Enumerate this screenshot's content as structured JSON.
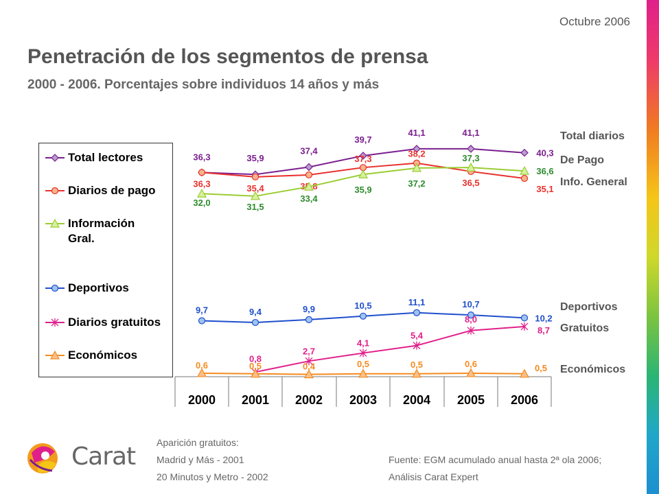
{
  "header": {
    "date": "Octubre 2006",
    "title": "Penetración de los segmentos de prensa",
    "subtitle": "2000 - 2006. Porcentajes sobre individuos 14 años y más"
  },
  "chart_data": {
    "type": "line",
    "x": [
      "2000",
      "2001",
      "2002",
      "2003",
      "2004",
      "2005",
      "2006"
    ],
    "series": [
      {
        "name": "Total lectores",
        "color": "#7a1f8f",
        "marker": "diamond",
        "end_label": "Total diarios",
        "values": [
          36.3,
          35.9,
          37.4,
          39.7,
          41.1,
          41.1,
          40.3
        ],
        "labels": [
          "36,3",
          "35,9",
          "37,4",
          "39,7",
          "41,1",
          "41,1",
          "40,3"
        ]
      },
      {
        "name": "Diarios de pago",
        "color": "#e8302c",
        "marker": "circle",
        "end_label": "De Pago",
        "values": [
          36.3,
          35.4,
          35.8,
          37.3,
          38.2,
          36.5,
          35.1
        ],
        "labels": [
          "36,3",
          "35,4",
          "35,8",
          "37,3",
          "38,2",
          "36,5",
          "35,1"
        ]
      },
      {
        "name": "Información Gral.",
        "legend_lines": [
          "Información",
          "Gral."
        ],
        "color": "#9acd32",
        "marker": "triangle",
        "end_label": "Info. General",
        "values": [
          32.0,
          31.5,
          33.4,
          35.9,
          37.2,
          37.3,
          36.6
        ],
        "labels": [
          "32,0",
          "31,5",
          "33,4",
          "35,9",
          "37,2",
          "37,3",
          "36,6"
        ]
      },
      {
        "name": "Deportivos",
        "color": "#1f4fcc",
        "marker": "circle",
        "end_label": "Deportivos",
        "values": [
          9.7,
          9.4,
          9.9,
          10.5,
          11.1,
          10.7,
          10.2
        ],
        "labels": [
          "9,7",
          "9,4",
          "9,9",
          "10,5",
          "11,1",
          "10,7",
          "10,2"
        ]
      },
      {
        "name": "Diarios gratuitos",
        "color": "#e0208a",
        "marker": "star",
        "end_label": "Gratuitos",
        "values": [
          null,
          0.8,
          2.7,
          4.1,
          5.4,
          8.0,
          8.7
        ],
        "labels": [
          "",
          "0,8",
          "2,7",
          "4,1",
          "5,4",
          "8,0",
          "8,7"
        ]
      },
      {
        "name": "Económicos",
        "color": "#f58a1f",
        "marker": "triangle",
        "end_label": "Económicos",
        "values": [
          0.6,
          0.5,
          0.4,
          0.5,
          0.5,
          0.6,
          0.5
        ],
        "labels": [
          "0,6",
          "0,5",
          "0,4",
          "0,5",
          "0,5",
          "0,6",
          "0,5"
        ]
      }
    ],
    "legend_position": "left",
    "grid": false
  },
  "footer": {
    "note_title": "Aparición gratuitos:",
    "note_line1": "Madrid y Más  - 2001",
    "note_line2": "20 Minutos y Metro - 2002",
    "source_line1": "Fuente: EGM acumulado anual hasta 2ª ola 2006;",
    "source_line2": "Análisis Carat Expert",
    "logo_text": "Carat"
  }
}
